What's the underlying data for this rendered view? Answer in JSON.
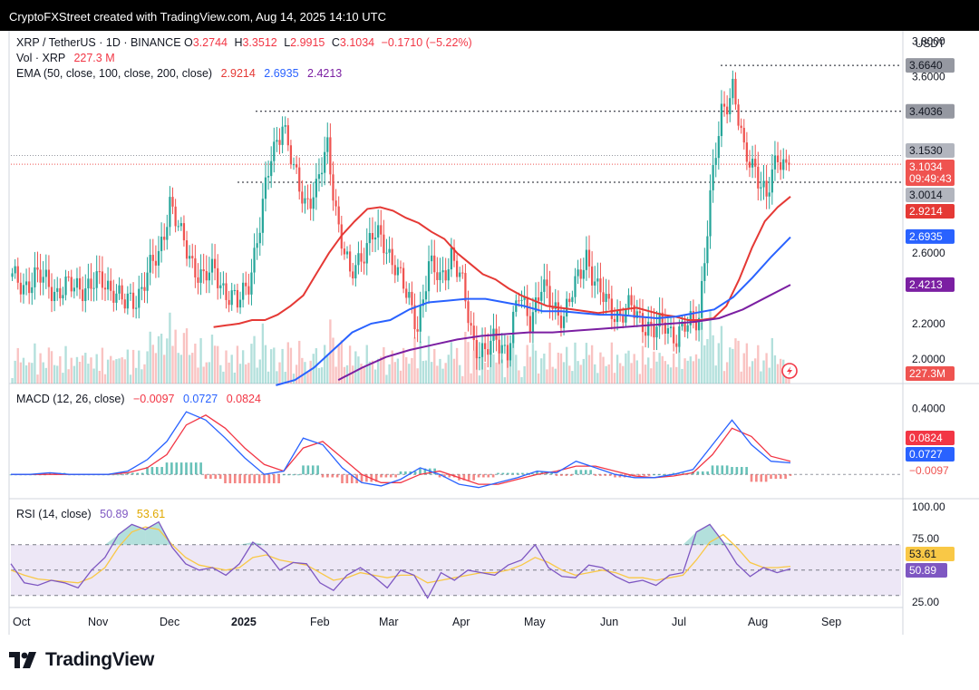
{
  "header": {
    "credit": "CryptoFXStreet created with TradingView.com, Aug 14, 2025 14:10 UTC"
  },
  "legend": {
    "symbol": "XRP / TetherUS · 1D · BINANCE",
    "ohlc": [
      {
        "k": "O",
        "v": "3.2744"
      },
      {
        "k": "H",
        "v": "3.3512"
      },
      {
        "k": "L",
        "v": "2.9915"
      },
      {
        "k": "C",
        "v": "3.1034"
      }
    ],
    "change": "−0.1710 (−5.22%)",
    "vol_label": "Vol · XRP",
    "vol_value": "227.3 M",
    "ema_label": "EMA (50, close, 100, close, 200, close)",
    "ema_values": [
      "2.9214",
      "2.6935",
      "2.4213"
    ],
    "macd_label": "MACD (12, 26, close)",
    "macd_values": [
      "−0.0097",
      "0.0727",
      "0.0824"
    ],
    "rsi_label": "RSI (14, close)",
    "rsi_values": [
      "50.89",
      "53.61"
    ]
  },
  "footer": {
    "brand": "TradingView"
  },
  "colors": {
    "up": "#26a69a",
    "down": "#ef5350",
    "ema50": "#e53935",
    "ema100": "#2962ff",
    "ema200": "#7b1fa2",
    "macd": "#2962ff",
    "signal": "#f23645",
    "rsi": "#7e57c2",
    "rsi_ma": "#f9c846",
    "rsi_band": "#ede7f6"
  },
  "chart_data": [
    {
      "type": "candlestick",
      "panel": "price",
      "currency": "USDT",
      "y_ticks": [
        "2.0000",
        "2.2000",
        "2.6000",
        "3.6000",
        "3.8000"
      ],
      "ylim": [
        1.86,
        3.86
      ],
      "x_ticks": [
        "Oct",
        "Nov",
        "Dec",
        "2025",
        "Feb",
        "Mar",
        "Apr",
        "May",
        "Jun",
        "Jul",
        "Aug",
        "Sep"
      ],
      "levels": [
        {
          "value": 3.664,
          "label": "3.6640"
        },
        {
          "value": 3.4036,
          "label": "3.4036"
        },
        {
          "value": 3.0014,
          "label": "3.0014"
        }
      ],
      "price_labels": [
        {
          "value": 3.153,
          "label": "3.1530",
          "kind": "high"
        },
        {
          "value": 3.1034,
          "label": "3.1034",
          "sub": "09:49:43",
          "kind": "last"
        },
        {
          "value": 3.0014,
          "label": "3.0014",
          "kind": "level"
        },
        {
          "value": 2.9214,
          "label": "2.9214",
          "kind": "ema50"
        },
        {
          "value": 2.6935,
          "label": "2.6935",
          "kind": "ema100"
        },
        {
          "value": 2.4213,
          "label": "2.4213",
          "kind": "ema200"
        }
      ],
      "volume_label": "227.3M",
      "closes_every_4_days": [
        2.45,
        2.42,
        2.46,
        2.44,
        2.38,
        2.4,
        2.42,
        2.41,
        2.44,
        2.4,
        2.3,
        2.35,
        2.48,
        2.58,
        2.9,
        2.68,
        2.55,
        2.45,
        2.5,
        2.38,
        2.3,
        2.45,
        2.75,
        3.15,
        3.35,
        3.05,
        2.9,
        2.95,
        3.2,
        2.75,
        2.45,
        2.6,
        2.7,
        2.65,
        2.55,
        2.35,
        2.2,
        2.52,
        2.45,
        2.6,
        2.4,
        2.1,
        2.02,
        2.12,
        2.05,
        2.35,
        2.24,
        2.4,
        2.3,
        2.25,
        2.4,
        2.6,
        2.38,
        2.3,
        2.25,
        2.28,
        2.22,
        2.15,
        2.2,
        2.13,
        2.18,
        2.26,
        2.9,
        3.4,
        3.55,
        3.15,
        3.1,
        2.9,
        3.15,
        3.1
      ],
      "ema50": [
        2.18,
        2.19,
        2.2,
        2.22,
        2.22,
        2.25,
        2.3,
        2.36,
        2.48,
        2.6,
        2.7,
        2.78,
        2.85,
        2.86,
        2.84,
        2.8,
        2.77,
        2.72,
        2.68,
        2.6,
        2.54,
        2.48,
        2.45,
        2.4,
        2.36,
        2.33,
        2.3,
        2.29,
        2.28,
        2.27,
        2.26,
        2.27,
        2.28,
        2.29,
        2.27,
        2.25,
        2.24,
        2.22,
        2.22,
        2.23,
        2.3,
        2.45,
        2.63,
        2.78,
        2.86,
        2.92
      ],
      "ema100": [
        1.85,
        1.88,
        1.95,
        2.05,
        2.15,
        2.2,
        2.22,
        2.28,
        2.32,
        2.33,
        2.34,
        2.34,
        2.32,
        2.3,
        2.27,
        2.27,
        2.26,
        2.25,
        2.25,
        2.24,
        2.23,
        2.24,
        2.26,
        2.28,
        2.35,
        2.46,
        2.58,
        2.69
      ],
      "ema200": [
        1.88,
        1.95,
        2.01,
        2.05,
        2.08,
        2.11,
        2.13,
        2.14,
        2.15,
        2.15,
        2.16,
        2.17,
        2.18,
        2.19,
        2.2,
        2.21,
        2.23,
        2.28,
        2.35,
        2.42
      ]
    },
    {
      "type": "line",
      "panel": "macd",
      "y_ticks": [
        "0.4000"
      ],
      "ylim": [
        -0.12,
        0.48
      ],
      "value_labels": [
        "0.0824",
        "0.0727",
        "−0.0097"
      ],
      "series": [
        {
          "role": "macd",
          "values": [
            0.0,
            0.0,
            0.01,
            0.0,
            0.0,
            0.0,
            0.02,
            0.09,
            0.2,
            0.38,
            0.33,
            0.22,
            0.1,
            0.0,
            0.02,
            0.22,
            0.18,
            0.04,
            -0.05,
            -0.07,
            -0.03,
            0.04,
            0.0,
            -0.06,
            -0.08,
            -0.05,
            -0.02,
            0.02,
            0.01,
            0.08,
            0.04,
            0.0,
            -0.02,
            -0.02,
            0.0,
            0.03,
            0.18,
            0.33,
            0.18,
            0.08,
            0.07
          ]
        },
        {
          "role": "signal",
          "values": [
            0.0,
            0.0,
            0.0,
            0.0,
            0.0,
            0.0,
            0.01,
            0.04,
            0.12,
            0.3,
            0.36,
            0.28,
            0.16,
            0.06,
            0.02,
            0.16,
            0.2,
            0.1,
            0.0,
            -0.05,
            -0.05,
            0.0,
            0.02,
            -0.02,
            -0.06,
            -0.06,
            -0.03,
            0.0,
            0.02,
            0.05,
            0.05,
            0.02,
            -0.01,
            -0.02,
            -0.01,
            0.01,
            0.12,
            0.28,
            0.23,
            0.11,
            0.08
          ]
        }
      ]
    },
    {
      "type": "line",
      "panel": "rsi",
      "y_ticks": [
        "100.00",
        "75.00",
        "25.00"
      ],
      "ylim": [
        22,
        102
      ],
      "bands": [
        70,
        50,
        30
      ],
      "value_labels": [
        "53.61",
        "50.89"
      ],
      "series": [
        {
          "role": "rsi",
          "values": [
            55,
            40,
            38,
            42,
            40,
            36,
            50,
            60,
            78,
            86,
            82,
            88,
            68,
            55,
            50,
            52,
            46,
            55,
            72,
            64,
            50,
            56,
            55,
            40,
            34,
            46,
            52,
            45,
            36,
            50,
            46,
            28,
            48,
            42,
            50,
            48,
            46,
            54,
            58,
            70,
            52,
            45,
            44,
            54,
            52,
            45,
            40,
            42,
            38,
            46,
            48,
            80,
            86,
            72,
            55,
            45,
            52,
            48,
            51
          ]
        },
        {
          "role": "rsi_ma",
          "values": [
            50,
            46,
            43,
            42,
            41,
            40,
            44,
            52,
            68,
            80,
            84,
            82,
            70,
            60,
            54,
            52,
            50,
            52,
            60,
            62,
            58,
            56,
            54,
            48,
            42,
            44,
            48,
            46,
            44,
            46,
            46,
            40,
            42,
            44,
            46,
            48,
            48,
            50,
            54,
            60,
            56,
            50,
            46,
            48,
            50,
            48,
            44,
            44,
            42,
            44,
            46,
            58,
            72,
            78,
            68,
            56,
            52,
            52,
            53
          ]
        }
      ]
    }
  ]
}
